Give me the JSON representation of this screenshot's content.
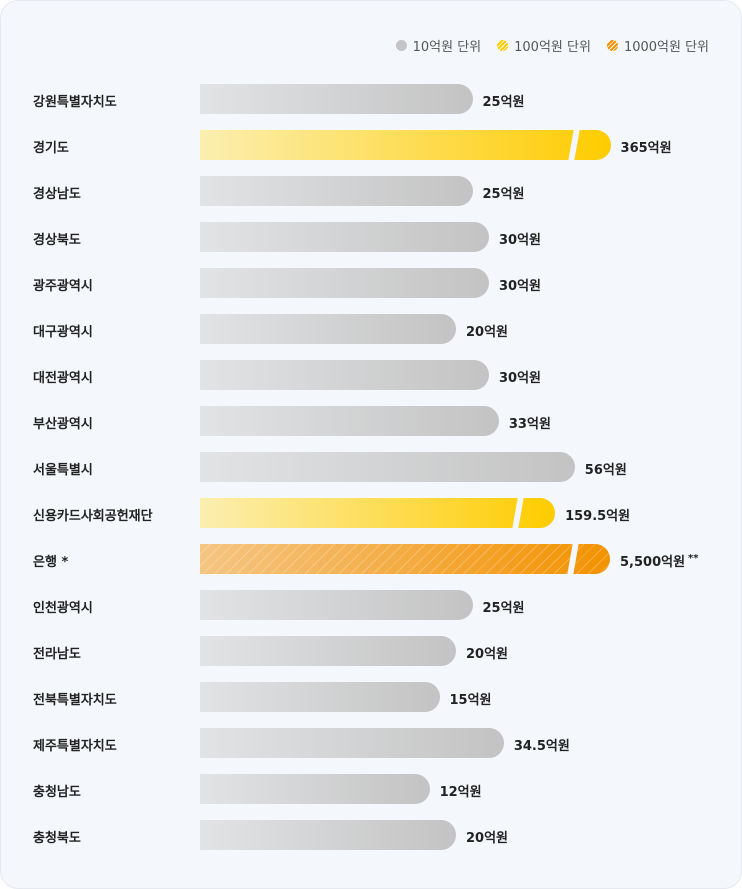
{
  "legend": [
    {
      "label": "10억원 단위",
      "color": "#c4c4c4"
    },
    {
      "label": "100억원 단위",
      "color": "#ffcc00"
    },
    {
      "label": "1000억원 단위",
      "color": "#f39200"
    }
  ],
  "chart_data": {
    "type": "bar",
    "orientation": "horizontal",
    "categories": [
      "강원특별자치도",
      "경기도",
      "경상남도",
      "경상북도",
      "광주광역시",
      "대구광역시",
      "대전광역시",
      "부산광역시",
      "서울특별시",
      "신용카드사회공헌재단",
      "은행 *",
      "인천광역시",
      "전라남도",
      "전북특별자치도",
      "제주특별자치도",
      "충청남도",
      "충청북도"
    ],
    "values": [
      25,
      365,
      25,
      30,
      30,
      20,
      30,
      33,
      56,
      159.5,
      5500,
      25,
      20,
      15,
      34.5,
      12,
      20
    ],
    "units": [
      "10",
      "100",
      "10",
      "10",
      "10",
      "10",
      "10",
      "10",
      "10",
      "100",
      "1000",
      "10",
      "10",
      "10",
      "10",
      "10",
      "10"
    ],
    "value_labels": [
      "25억원",
      "365억원",
      "25억원",
      "30억원",
      "30억원",
      "20억원",
      "30억원",
      "33억원",
      "56억원",
      "159.5억원",
      "5,500억원",
      "25억원",
      "20억원",
      "15억원",
      "34.5억원",
      "12억원",
      "20억원"
    ],
    "value_marks": [
      "",
      "",
      "",
      "",
      "",
      "",
      "",
      "",
      "",
      "",
      "**",
      "",
      "",
      "",
      "",
      "",
      ""
    ],
    "legend_placement": "top-right"
  }
}
